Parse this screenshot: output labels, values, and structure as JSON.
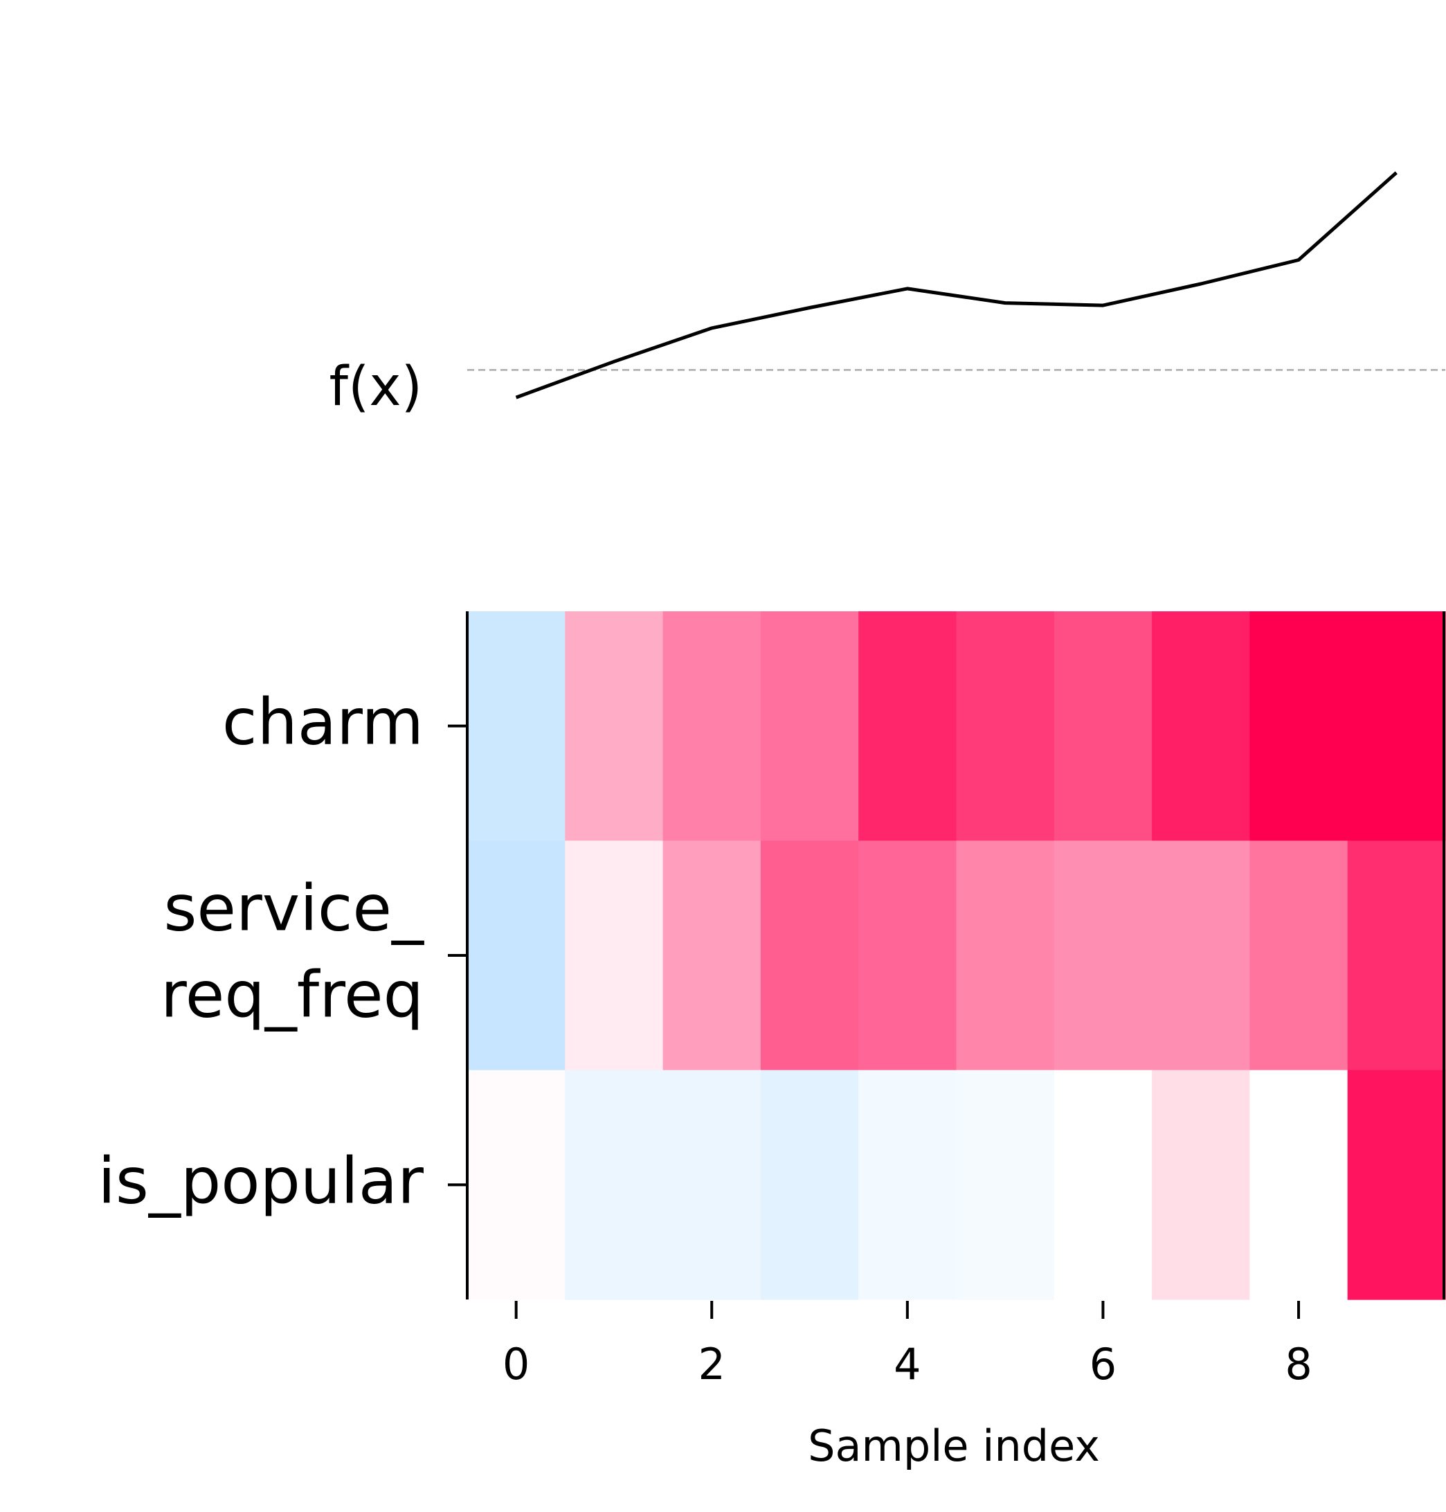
{
  "chart_data": {
    "type": "heatmap",
    "title": "",
    "fx_label": "f(x)",
    "xlabel": "Sample index",
    "x": [
      0,
      1,
      2,
      3,
      4,
      5,
      6,
      7,
      8,
      9
    ],
    "xticks": [
      "0",
      "2",
      "4",
      "6",
      "8"
    ],
    "xlim": [
      -0.5,
      9.5
    ],
    "features": [
      "charm",
      "service_\nreq_freq",
      "is_popular"
    ],
    "fx_values": [
      -0.1,
      0.2,
      0.48,
      0.65,
      0.81,
      0.69,
      0.67,
      0.85,
      1.05,
      1.78
    ],
    "fx_baseline": 0.13,
    "fx_ylim": [
      -0.25,
      1.95
    ],
    "values": [
      [
        -0.2,
        0.32,
        0.5,
        0.56,
        0.85,
        0.77,
        0.7,
        0.88,
        1.0,
        1.0
      ],
      [
        -0.22,
        0.08,
        0.38,
        0.63,
        0.6,
        0.48,
        0.44,
        0.44,
        0.55,
        0.82
      ],
      [
        0.02,
        -0.08,
        -0.08,
        -0.11,
        -0.05,
        -0.04,
        0.0,
        0.13,
        0.0,
        0.92
      ]
    ],
    "color_range": [
      -1,
      1
    ],
    "colors": {
      "positive": "#ff0051",
      "negative": "#008bfb",
      "neutral": "#ffffff"
    },
    "grid": false
  }
}
